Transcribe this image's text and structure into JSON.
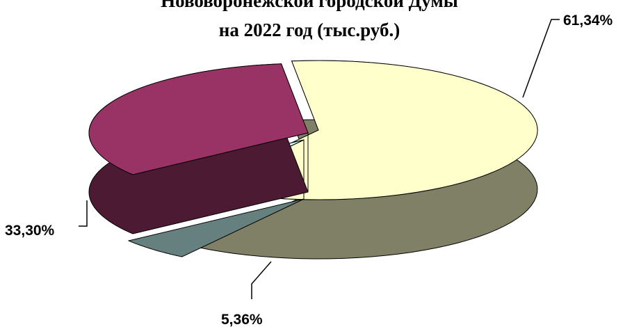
{
  "chart_data": {
    "type": "pie",
    "title_lines": [
      "Нововоронежской городской Думы",
      "на  2022 год  (тыс.руб.)"
    ],
    "slices": [
      {
        "label": "61,34%",
        "value": 61.34,
        "color": "#ffffcc",
        "side_color": "#808066"
      },
      {
        "label": "5,36%",
        "value": 5.36,
        "color": "#ccffff",
        "side_color": "#668080"
      },
      {
        "label": "33,30%",
        "value": 33.3,
        "color": "#993366",
        "side_color": "#4d1a33"
      }
    ],
    "view": "3d",
    "exploded": true,
    "legend": "none"
  }
}
